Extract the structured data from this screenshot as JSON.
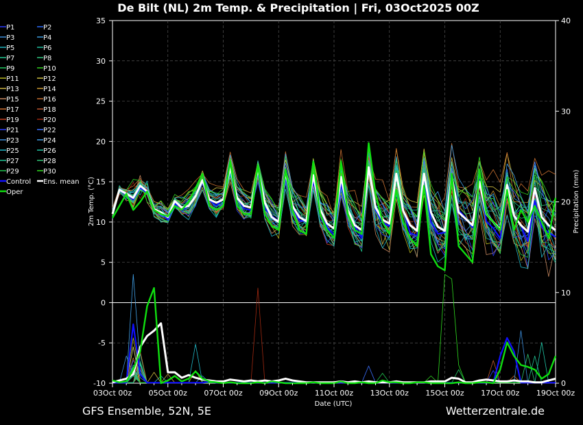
{
  "title": "De Bilt  (NL)  2m Temp. & Precipitation | Fri, 03Oct2025 00Z",
  "footer_left": "GFS Ensemble, 52N, 5E",
  "footer_right": "Wetterzentrale.de",
  "chart_data": {
    "type": "line",
    "xlabel": "Date (UTC)",
    "ylabel": "2m Temp. (°C)",
    "y2label": "Precipitation (mm)",
    "x_tick_labels": [
      "03Oct 00z",
      "05Oct 00z",
      "07Oct 00z",
      "09Oct 00z",
      "11Oct 00z",
      "13Oct 00z",
      "15Oct 00z",
      "17Oct 00z",
      "19Oct 00z"
    ],
    "x_step_hours": 6,
    "xlim_hours": [
      0,
      384
    ],
    "ylim": [
      -10,
      35
    ],
    "y_ticks": [
      -10,
      -5,
      0,
      5,
      10,
      15,
      20,
      25,
      30,
      35
    ],
    "y2lim": [
      0,
      40
    ],
    "y2_ticks": [
      0,
      10,
      20,
      30,
      40
    ],
    "grid": true,
    "legend_placement": "left",
    "legend": [
      {
        "name": "P1",
        "color": "#2a3cff"
      },
      {
        "name": "P2",
        "color": "#2a6cff"
      },
      {
        "name": "P3",
        "color": "#3c8cd8"
      },
      {
        "name": "P4",
        "color": "#3c9ce0"
      },
      {
        "name": "P5",
        "color": "#20b4c0"
      },
      {
        "name": "P6",
        "color": "#20c0a0"
      },
      {
        "name": "P7",
        "color": "#20c890"
      },
      {
        "name": "P8",
        "color": "#30c880"
      },
      {
        "name": "P9",
        "color": "#20c860"
      },
      {
        "name": "P10",
        "color": "#30d020"
      },
      {
        "name": "P11",
        "color": "#b8b820"
      },
      {
        "name": "P12",
        "color": "#d0c040"
      },
      {
        "name": "P13",
        "color": "#c8b040"
      },
      {
        "name": "P14",
        "color": "#c89830"
      },
      {
        "name": "P15",
        "color": "#c88860"
      },
      {
        "name": "P16",
        "color": "#c87030"
      },
      {
        "name": "P17",
        "color": "#d07030"
      },
      {
        "name": "P18",
        "color": "#c05830"
      },
      {
        "name": "P19",
        "color": "#c84020"
      },
      {
        "name": "P20",
        "color": "#a02810"
      },
      {
        "name": "P21",
        "color": "#2a3cff"
      },
      {
        "name": "P22",
        "color": "#3c70ff"
      },
      {
        "name": "P23",
        "color": "#3c90e0"
      },
      {
        "name": "P24",
        "color": "#40a0e8"
      },
      {
        "name": "P25",
        "color": "#20b8c8"
      },
      {
        "name": "P26",
        "color": "#20c8a8"
      },
      {
        "name": "P27",
        "color": "#20c898"
      },
      {
        "name": "P28",
        "color": "#30c878"
      },
      {
        "name": "P29",
        "color": "#20c850"
      },
      {
        "name": "P30",
        "color": "#30e020"
      },
      {
        "name": "Control",
        "color": "#1010ff"
      },
      {
        "name": "Ens. mean",
        "color": "#ffffff"
      },
      {
        "name": "Oper",
        "color": "#10e010"
      }
    ],
    "members": [
      {
        "name": "P1",
        "color": "#2a3cff",
        "phase": 0.3,
        "offset": -0.5,
        "temp_noise": 1.1,
        "precip": [
          [
            18,
            1.2
          ],
          [
            20,
            2.5
          ],
          [
            24,
            1.5
          ]
        ]
      },
      {
        "name": "P2",
        "color": "#2a6cff",
        "phase": -0.4,
        "offset": 0.4,
        "temp_noise": 1.0,
        "precip": [
          [
            18,
            0.8
          ],
          [
            24,
            2.2
          ]
        ]
      },
      {
        "name": "P3",
        "color": "#3c8cd8",
        "phase": 0.1,
        "offset": -0.2,
        "temp_noise": 0.9,
        "precip": [
          [
            14,
            3.0
          ],
          [
            20,
            1.0
          ],
          [
            76,
            0.8
          ]
        ]
      },
      {
        "name": "P4",
        "color": "#3c9ce0",
        "phase": -0.2,
        "offset": 0.8,
        "temp_noise": 0.9,
        "precip": [
          [
            20,
            4.0
          ],
          [
            26,
            0.6
          ]
        ]
      },
      {
        "name": "P5",
        "color": "#20b4c0",
        "phase": 0.5,
        "offset": -0.8,
        "temp_noise": 1.2,
        "precip": [
          [
            24,
            1.5
          ],
          [
            44,
            0.8
          ]
        ]
      },
      {
        "name": "P6",
        "color": "#20c0a0",
        "phase": -0.5,
        "offset": 1.1,
        "temp_noise": 1.0,
        "precip": [
          [
            18,
            2.0
          ],
          [
            22,
            1.2
          ]
        ]
      },
      {
        "name": "P7",
        "color": "#20c890",
        "phase": 0.2,
        "offset": -1.2,
        "temp_noise": 1.1,
        "precip": [
          [
            16,
            1.0
          ],
          [
            22,
            3.2
          ]
        ]
      },
      {
        "name": "P8",
        "color": "#30c880",
        "phase": -0.1,
        "offset": 0.6,
        "temp_noise": 0.8,
        "precip": [
          [
            20,
            1.8
          ]
        ]
      },
      {
        "name": "P9",
        "color": "#20c860",
        "phase": 0.4,
        "offset": -0.3,
        "temp_noise": 1.3,
        "precip": [
          [
            24,
            2.4
          ],
          [
            300,
            1.5
          ]
        ]
      },
      {
        "name": "P10",
        "color": "#30d020",
        "phase": -0.3,
        "offset": 1.4,
        "temp_noise": 1.2,
        "precip": [
          [
            20,
            1.0
          ],
          [
            276,
            0.8
          ]
        ]
      },
      {
        "name": "P11",
        "color": "#b8b820",
        "phase": 0.2,
        "offset": -1.5,
        "temp_noise": 1.0,
        "precip": [
          [
            18,
            5.0
          ],
          [
            24,
            1.0
          ],
          [
            72,
            1.4
          ]
        ]
      },
      {
        "name": "P12",
        "color": "#d0c040",
        "phase": -0.2,
        "offset": 1.7,
        "temp_noise": 0.9,
        "precip": [
          [
            20,
            4.0
          ],
          [
            36,
            1.2
          ]
        ]
      },
      {
        "name": "P13",
        "color": "#c8b040",
        "phase": 0.6,
        "offset": -0.9,
        "temp_noise": 1.1,
        "precip": [
          [
            22,
            2.0
          ],
          [
            48,
            1.0
          ]
        ]
      },
      {
        "name": "P14",
        "color": "#c89830",
        "phase": -0.6,
        "offset": 0.9,
        "temp_noise": 1.2,
        "precip": [
          [
            24,
            1.0
          ]
        ]
      },
      {
        "name": "P15",
        "color": "#c88860",
        "phase": 0.3,
        "offset": -1.8,
        "temp_noise": 1.4,
        "precip": [
          [
            18,
            1.5
          ]
        ]
      },
      {
        "name": "P16",
        "color": "#c87030",
        "phase": -0.4,
        "offset": 2.2,
        "temp_noise": 1.3,
        "precip": [
          [
            20,
            2.8
          ],
          [
            348,
            0.8
          ]
        ]
      },
      {
        "name": "P17",
        "color": "#d07030",
        "phase": 0.1,
        "offset": -0.6,
        "temp_noise": 1.2,
        "precip": [
          [
            24,
            3.5
          ]
        ]
      },
      {
        "name": "P18",
        "color": "#c05830",
        "phase": -0.1,
        "offset": 0.2,
        "temp_noise": 1.1,
        "precip": [
          [
            18,
            1.1
          ],
          [
            330,
            2.5
          ]
        ]
      },
      {
        "name": "P19",
        "color": "#c84020",
        "phase": 0.5,
        "offset": -1.0,
        "temp_noise": 1.0,
        "precip": [
          [
            22,
            1.7
          ]
        ]
      },
      {
        "name": "P20",
        "color": "#a02810",
        "phase": -0.5,
        "offset": 0.5,
        "temp_noise": 0.9,
        "precip": [
          [
            20,
            0.8
          ],
          [
            126,
            10.5
          ]
        ]
      },
      {
        "name": "P21",
        "color": "#2a3cff",
        "phase": 0.2,
        "offset": -1.3,
        "temp_noise": 1.3,
        "precip": [
          [
            24,
            2.0
          ],
          [
            330,
            1.4
          ]
        ]
      },
      {
        "name": "P22",
        "color": "#3c70ff",
        "phase": -0.3,
        "offset": 1.0,
        "temp_noise": 1.1,
        "precip": [
          [
            18,
            1.6
          ],
          [
            222,
            1.9
          ]
        ]
      },
      {
        "name": "P23",
        "color": "#3c90e0",
        "phase": 0.4,
        "offset": -0.4,
        "temp_noise": 1.0,
        "precip": [
          [
            20,
            1.2
          ],
          [
            354,
            5.8
          ]
        ]
      },
      {
        "name": "P24",
        "color": "#40a0e8",
        "phase": -0.2,
        "offset": 1.6,
        "temp_noise": 1.2,
        "precip": [
          [
            20,
            12.0
          ],
          [
            22,
            2.0
          ]
        ]
      },
      {
        "name": "P25",
        "color": "#20b8c8",
        "phase": 0.3,
        "offset": -1.6,
        "temp_noise": 1.1,
        "precip": [
          [
            26,
            2.0
          ],
          [
            72,
            4.3
          ]
        ]
      },
      {
        "name": "P26",
        "color": "#20c8a8",
        "phase": -0.4,
        "offset": 0.3,
        "temp_noise": 1.0,
        "precip": [
          [
            18,
            0.8
          ],
          [
            372,
            4.5
          ]
        ]
      },
      {
        "name": "P27",
        "color": "#20c898",
        "phase": 0.5,
        "offset": -0.7,
        "temp_noise": 1.2,
        "precip": [
          [
            24,
            1.5
          ],
          [
            366,
            3.0
          ]
        ]
      },
      {
        "name": "P28",
        "color": "#30c878",
        " phase": 0,
        "phase": -0.1,
        "offset": 0.7,
        "temp_noise": 0.9,
        "precip": [
          [
            22,
            2.2
          ],
          [
            360,
            3.2
          ]
        ]
      },
      {
        "name": "P29",
        "color": "#20c850",
        "phase": 0.2,
        "offset": -1.1,
        "temp_noise": 1.1,
        "precip": [
          [
            18,
            1.0
          ],
          [
            234,
            1.1
          ]
        ]
      },
      {
        "name": "P30",
        "color": "#30e020",
        "phase": -0.6,
        "offset": 1.3,
        "temp_noise": 1.0,
        "precip": [
          [
            20,
            1.5
          ],
          [
            288,
            12.0
          ],
          [
            294,
            11.5
          ],
          [
            300,
            2.0
          ]
        ]
      }
    ],
    "control": {
      "name": "Control",
      "color": "#1010ff",
      "phase": 0.0,
      "offset": -0.3,
      "temp_noise": 0.6,
      "precip": [
        [
          18,
          6.5
        ],
        [
          22,
          7.0
        ],
        [
          24,
          1.0
        ],
        [
          84,
          0.2
        ],
        [
          336,
          3.0
        ],
        [
          342,
          5.0
        ],
        [
          348,
          3.5
        ]
      ]
    },
    "ens_mean": {
      "name": "Ens. mean",
      "color": "#ffffff",
      "temp": [
        11.0,
        14.0,
        13.5,
        13.0,
        14.5,
        13.8,
        11.6,
        11.2,
        10.6,
        12.6,
        11.8,
        12.0,
        13.2,
        15.2,
        12.8,
        12.4,
        12.8,
        16.8,
        13.0,
        12.0,
        11.8,
        16.6,
        12.4,
        10.6,
        10.0,
        16.2,
        12.0,
        10.6,
        10.1,
        15.8,
        11.6,
        9.8,
        9.2,
        15.6,
        11.5,
        9.6,
        9.0,
        16.8,
        11.8,
        10.3,
        9.8,
        16.0,
        11.4,
        9.6,
        8.9,
        16.0,
        11.2,
        9.4,
        8.9,
        15.6,
        11.2,
        10.4,
        9.6,
        15.0,
        11.0,
        10.0,
        9.1,
        14.6,
        10.8,
        9.6,
        8.8,
        14.2,
        10.6,
        9.6,
        9.0
      ],
      "precip": [
        0.1,
        0.3,
        0.5,
        1.0,
        4.0,
        5.2,
        5.8,
        6.6,
        1.2,
        1.2,
        0.6,
        0.9,
        0.6,
        0.4,
        0.3,
        0.2,
        0.2,
        0.4,
        0.3,
        0.2,
        0.3,
        0.2,
        0.3,
        0.2,
        0.3,
        0.5,
        0.3,
        0.2,
        0.1,
        0.1,
        0.1,
        0.1,
        0.1,
        0.2,
        0.1,
        0.2,
        0.1,
        0.2,
        0.1,
        0.1,
        0.1,
        0.2,
        0.1,
        0.1,
        0.1,
        0.1,
        0.2,
        0.2,
        0.2,
        0.6,
        0.5,
        0.1,
        0.1,
        0.3,
        0.4,
        0.3,
        0.2,
        0.2,
        0.3,
        0.2,
        0.2,
        0.1,
        0.1,
        0.3,
        0.5
      ]
    },
    "oper": {
      "name": "Oper",
      "color": "#10e010",
      "temp": [
        10.5,
        12.0,
        13.5,
        11.5,
        12.5,
        13.8,
        11.5,
        11.0,
        10.7,
        12.0,
        11.5,
        12.5,
        14.2,
        16.0,
        12.0,
        11.5,
        12.0,
        17.5,
        12.0,
        11.0,
        11.0,
        17.0,
        11.0,
        9.5,
        9.0,
        16.5,
        11.5,
        9.0,
        8.5,
        17.5,
        11.0,
        9.0,
        8.0,
        17.5,
        11.0,
        9.0,
        8.5,
        19.8,
        13.5,
        10.0,
        8.5,
        14.0,
        10.0,
        8.0,
        7.0,
        14.5,
        6.0,
        4.5,
        4.0,
        16.0,
        7.0,
        6.0,
        5.0,
        16.5,
        11.0,
        10.0,
        9.0,
        14.0,
        9.0,
        11.5,
        10.0,
        12.0,
        10.0,
        8.0,
        13.0
      ],
      "precip": [
        0.3,
        0.1,
        0.2,
        1.5,
        3.5,
        8.5,
        10.5,
        0.0,
        0.3,
        0.8,
        0.2,
        0.5,
        1.3,
        0.5,
        0.2,
        0.1,
        0.0,
        0.1,
        0.0,
        0.0,
        0.0,
        0.1,
        0.0,
        0.2,
        0.1,
        0.0,
        0.0,
        0.0,
        0.0,
        0.1,
        0.0,
        0.0,
        0.0,
        0.2,
        0.0,
        0.0,
        0.1,
        0.0,
        0.0,
        0.3,
        0.1,
        0.1,
        0.0,
        0.0,
        0.1,
        0.1,
        0.0,
        0.0,
        0.0,
        0.0,
        0.1,
        0.0,
        0.0,
        0.1,
        0.1,
        0.0,
        1.5,
        4.5,
        3.0,
        2.0,
        1.8,
        1.5,
        0.5,
        1.0,
        3.0
      ]
    }
  }
}
